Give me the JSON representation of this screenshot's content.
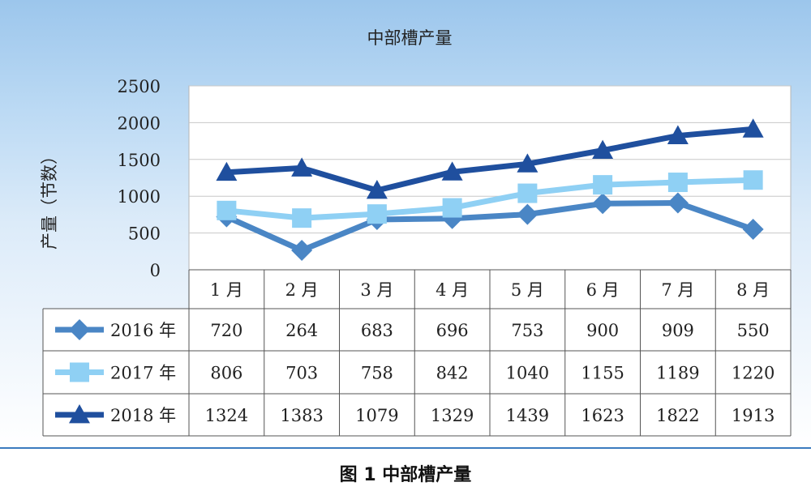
{
  "figure_caption": "图 1  中部槽产量",
  "chart_data": {
    "type": "line",
    "title": "中部槽产量",
    "ylabel": "产量（节数）",
    "xlabel": "",
    "ylim": [
      0,
      2500
    ],
    "yticks": [
      0,
      500,
      1000,
      1500,
      2000,
      2500
    ],
    "ytick_labels": [
      "0",
      "500",
      "1000",
      "1500",
      "2000",
      "2500"
    ],
    "categories": [
      "1 月",
      "2 月",
      "3 月",
      "4 月",
      "5 月",
      "6 月",
      "7 月",
      "8 月"
    ],
    "grid": true,
    "legend": "data-table",
    "series": [
      {
        "name": "2016 年",
        "marker": "diamond",
        "color": "#4a86c5",
        "values": [
          720,
          264,
          683,
          696,
          753,
          900,
          909,
          550
        ]
      },
      {
        "name": "2017 年",
        "marker": "square",
        "color": "#8fd0f4",
        "values": [
          806,
          703,
          758,
          842,
          1040,
          1155,
          1189,
          1220
        ]
      },
      {
        "name": "2018 年",
        "marker": "triangle",
        "color": "#1f4f9e",
        "values": [
          1324,
          1383,
          1079,
          1329,
          1439,
          1623,
          1822,
          1913
        ]
      }
    ]
  }
}
